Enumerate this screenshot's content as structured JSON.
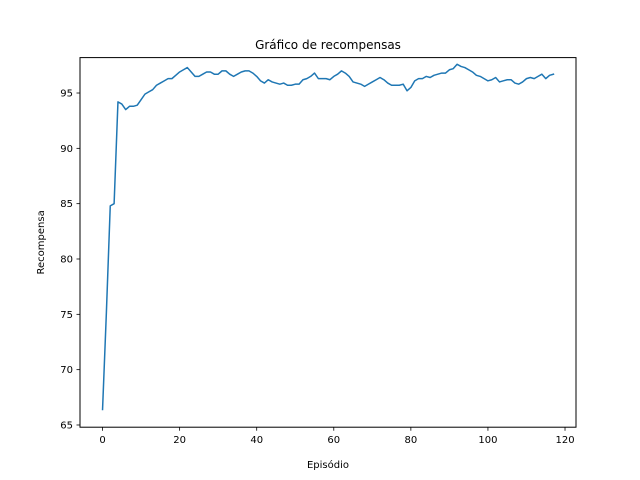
{
  "chart_data": {
    "type": "line",
    "title": "Gráfico de recompensas",
    "xlabel": "Episódio",
    "ylabel": "Recompensa",
    "xlim": [
      -5.85,
      122.85
    ],
    "ylim": [
      64.8,
      98.2
    ],
    "xticks": [
      0,
      20,
      40,
      60,
      80,
      100,
      120
    ],
    "yticks": [
      65,
      70,
      75,
      80,
      85,
      90,
      95
    ],
    "grid": false,
    "legend": "none",
    "series": [
      {
        "color": "#1f77b4",
        "x": [
          0,
          1,
          2,
          3,
          4,
          5,
          6,
          7,
          8,
          9,
          10,
          11,
          12,
          13,
          14,
          15,
          16,
          17,
          18,
          19,
          20,
          21,
          22,
          23,
          24,
          25,
          26,
          27,
          28,
          29,
          30,
          31,
          32,
          33,
          34,
          35,
          36,
          37,
          38,
          39,
          40,
          41,
          42,
          43,
          44,
          45,
          46,
          47,
          48,
          49,
          50,
          51,
          52,
          53,
          54,
          55,
          56,
          57,
          58,
          59,
          60,
          61,
          62,
          63,
          64,
          65,
          66,
          67,
          68,
          69,
          70,
          71,
          72,
          73,
          74,
          75,
          76,
          77,
          78,
          79,
          80,
          81,
          82,
          83,
          84,
          85,
          86,
          87,
          88,
          89,
          90,
          91,
          92,
          93,
          94,
          95,
          96,
          97,
          98,
          99,
          100,
          101,
          102,
          103,
          104,
          105,
          106,
          107,
          108,
          109,
          110,
          111,
          112,
          113,
          114,
          115,
          116,
          117
        ],
        "values": [
          66.4,
          75.2,
          84.8,
          85.0,
          94.2,
          94.0,
          93.5,
          93.8,
          93.8,
          93.9,
          94.4,
          94.9,
          95.1,
          95.3,
          95.7,
          95.9,
          96.1,
          96.3,
          96.3,
          96.6,
          96.9,
          97.1,
          97.3,
          96.9,
          96.5,
          96.5,
          96.7,
          96.9,
          96.9,
          96.7,
          96.7,
          97.0,
          97.0,
          96.7,
          96.5,
          96.7,
          96.9,
          97.0,
          97.0,
          96.8,
          96.5,
          96.1,
          95.9,
          96.2,
          96.0,
          95.9,
          95.8,
          95.9,
          95.7,
          95.7,
          95.8,
          95.8,
          96.2,
          96.3,
          96.5,
          96.8,
          96.3,
          96.3,
          96.3,
          96.2,
          96.5,
          96.7,
          97.0,
          96.8,
          96.5,
          96.0,
          95.9,
          95.8,
          95.6,
          95.8,
          96.0,
          96.2,
          96.4,
          96.2,
          95.9,
          95.7,
          95.7,
          95.7,
          95.8,
          95.2,
          95.5,
          96.1,
          96.3,
          96.3,
          96.5,
          96.4,
          96.6,
          96.7,
          96.8,
          96.8,
          97.1,
          97.2,
          97.6,
          97.4,
          97.3,
          97.1,
          96.9,
          96.6,
          96.5,
          96.3,
          96.1,
          96.2,
          96.4,
          96.0,
          96.1,
          96.2,
          96.2,
          95.9,
          95.8,
          96.0,
          96.3,
          96.4,
          96.3,
          96.5,
          96.7,
          96.3,
          96.6,
          96.7
        ]
      }
    ]
  }
}
